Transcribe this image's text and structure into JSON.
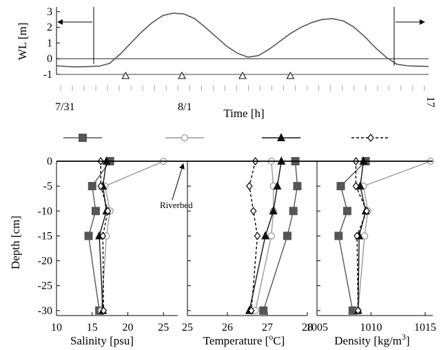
{
  "chart_data": [
    {
      "type": "line",
      "ylabel": "WL [m]",
      "xlabel": "Time [h]",
      "date_labels": [
        "7/31",
        "8/1"
      ],
      "x_end_label": "17",
      "yticks": [
        3,
        2,
        1,
        0,
        -1
      ],
      "ylim": [
        -1,
        3.3
      ],
      "x": [
        0,
        1,
        2,
        3,
        4,
        5,
        6,
        7,
        8,
        9,
        10,
        11,
        12,
        13,
        14,
        15,
        16,
        17,
        18,
        19,
        20,
        21,
        22,
        23,
        24,
        25,
        26,
        27,
        28,
        29,
        30,
        31,
        32,
        33,
        34,
        35
      ],
      "wl": [
        -0.45,
        -0.5,
        -0.52,
        -0.5,
        -0.48,
        -0.3,
        0.3,
        1.0,
        1.7,
        2.3,
        2.75,
        2.9,
        2.85,
        2.55,
        2.0,
        1.4,
        0.8,
        0.35,
        0.1,
        0.2,
        0.6,
        1.1,
        1.6,
        2.0,
        2.3,
        2.5,
        2.55,
        2.4,
        2.0,
        1.4,
        0.7,
        0.1,
        -0.35,
        -0.45,
        -0.48,
        -0.5
      ],
      "markers_x": [
        6.5,
        11.8,
        17.5,
        22.0
      ],
      "marker_value": -1,
      "tick_label_count": 32
    },
    {
      "type": "line",
      "xlabel": "Salinity [psu]",
      "ylabel": "Depth [cm]",
      "xticks": [
        10,
        15,
        20,
        25
      ],
      "xlim": [
        10,
        27
      ],
      "yticks": [
        0,
        -5,
        -10,
        -15,
        -20,
        -25,
        -30
      ],
      "ylim": [
        -31,
        0
      ],
      "series": [
        {
          "depth": [
            0,
            -5,
            -10,
            -15,
            -30
          ],
          "values": [
            17.5,
            15.0,
            15.5,
            14.5,
            16.0
          ]
        },
        {
          "depth": [
            0,
            -5,
            -10,
            -15,
            -30
          ],
          "values": [
            25.0,
            16.8,
            17.5,
            17.0,
            16.3
          ]
        },
        {
          "depth": [
            0,
            -5,
            -10,
            -15,
            -30
          ],
          "values": [
            17.0,
            16.5,
            17.0,
            16.0,
            16.5
          ]
        },
        {
          "depth": [
            0,
            -5,
            -10,
            -15,
            -30
          ],
          "values": [
            16.2,
            16.2,
            17.2,
            16.5,
            16.6
          ]
        }
      ],
      "annotation": "Riverbed"
    },
    {
      "type": "line",
      "xlabel": "Temperature [",
      "xlabel_sup": "o",
      "xlabel_end": "C]",
      "xticks": [
        25,
        26,
        27,
        28
      ],
      "xlim": [
        25,
        28
      ],
      "series": [
        {
          "depth": [
            0,
            -5,
            -10,
            -15,
            -30
          ],
          "values": [
            27.7,
            27.75,
            27.65,
            27.5,
            26.9
          ]
        },
        {
          "depth": [
            0,
            -5,
            -10,
            -15,
            -30
          ],
          "values": [
            27.1,
            27.15,
            27.15,
            27.1,
            26.7
          ]
        },
        {
          "depth": [
            0,
            -5,
            -10,
            -15,
            -30
          ],
          "values": [
            27.35,
            27.25,
            27.15,
            26.95,
            26.55
          ]
        },
        {
          "depth": [
            0,
            -5,
            -10,
            -15,
            -30
          ],
          "values": [
            26.7,
            26.55,
            26.65,
            26.75,
            26.6
          ]
        }
      ]
    },
    {
      "type": "line",
      "xlabel": "Density [kg/m",
      "xlabel_sup": "3",
      "xlabel_end": "]",
      "xticks": [
        1005,
        1010,
        1015
      ],
      "xlim_labels": [
        "1005",
        "1010",
        "1015"
      ],
      "xlim": [
        1005,
        1015.7
      ],
      "series": [
        {
          "depth": [
            0,
            -5,
            -10,
            -15,
            -30
          ],
          "values": [
            1009.5,
            1007.2,
            1007.8,
            1007.0,
            1008.3
          ]
        },
        {
          "depth": [
            0,
            -5,
            -10,
            -15,
            -30
          ],
          "values": [
            1015.5,
            1009.3,
            1009.7,
            1009.4,
            1008.8
          ]
        },
        {
          "depth": [
            0,
            -5,
            -10,
            -15,
            -30
          ],
          "values": [
            1009.3,
            1009.0,
            1009.5,
            1008.9,
            1008.8
          ]
        },
        {
          "depth": [
            0,
            -5,
            -10,
            -15,
            -30
          ],
          "values": [
            1008.6,
            1008.6,
            1009.6,
            1008.7,
            1008.8
          ]
        }
      ]
    }
  ],
  "styles": {
    "s1": {
      "color": "#555555",
      "marker": "square"
    },
    "s2": {
      "color": "#999999",
      "marker": "circle"
    },
    "s3": {
      "color": "#111111",
      "marker": "triangle"
    },
    "s4": {
      "color": "#000000",
      "marker": "diamond",
      "dashed": true
    }
  }
}
